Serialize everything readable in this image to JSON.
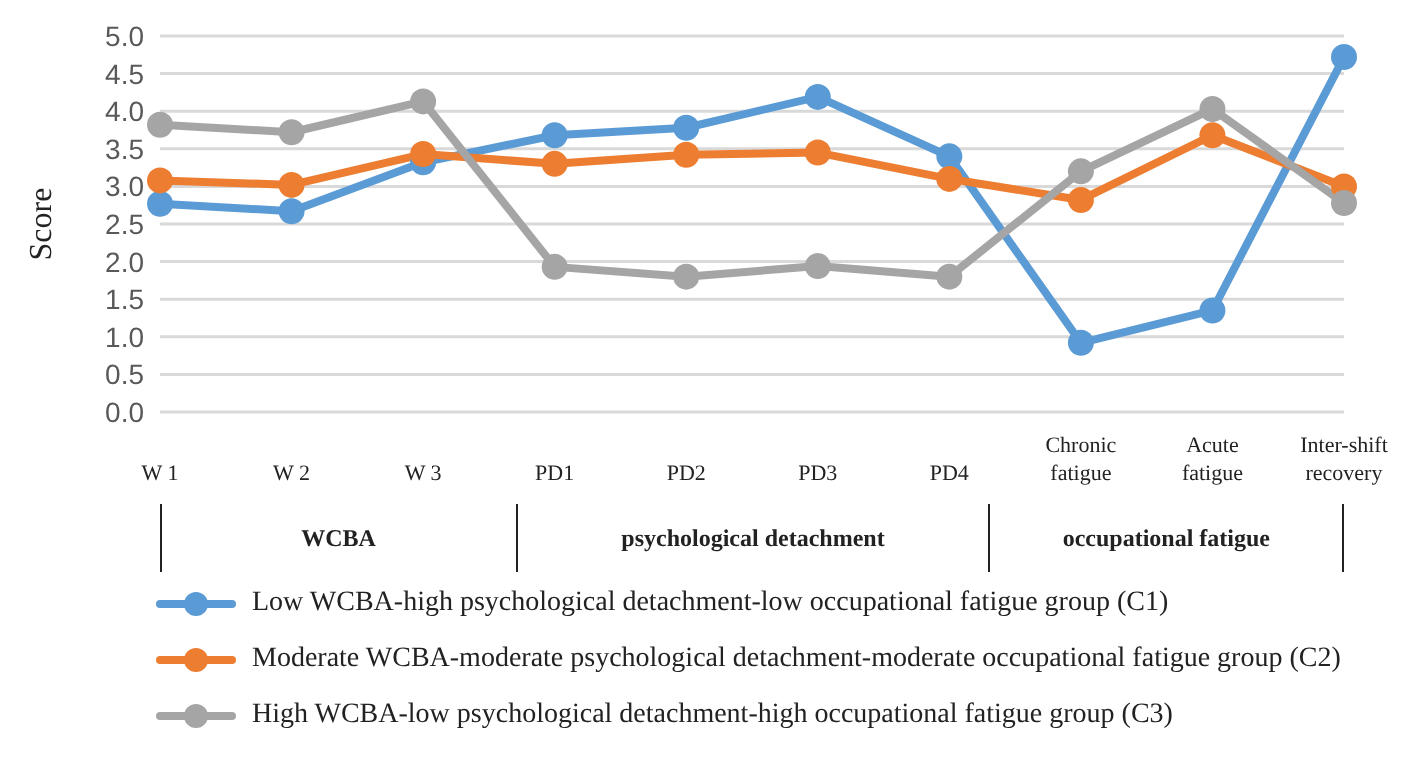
{
  "chart_data": {
    "type": "line",
    "ylabel": "Score",
    "categories": [
      "W 1",
      "W 2",
      "W 3",
      "PD1",
      "PD2",
      "PD3",
      "PD4",
      "Chronic fatigue",
      "Acute fatigue",
      "Inter-shift recovery"
    ],
    "series": [
      {
        "name": "Low WCBA-high psychological detachment-low occupational fatigue group (C1)",
        "color": "#5b9bd5",
        "values": [
          2.77,
          2.67,
          3.32,
          3.68,
          3.78,
          4.19,
          3.4,
          0.92,
          1.35,
          4.72
        ]
      },
      {
        "name": "Moderate WCBA-moderate psychological detachment-moderate occupational fatigue group (C2)",
        "color": "#ed7d31",
        "values": [
          3.08,
          3.02,
          3.43,
          3.3,
          3.42,
          3.45,
          3.1,
          2.82,
          3.68,
          3.0
        ]
      },
      {
        "name": "High WCBA-low psychological detachment-high occupational fatigue group (C3)",
        "color": "#a5a5a5",
        "values": [
          3.82,
          3.72,
          4.13,
          1.93,
          1.8,
          1.94,
          1.8,
          3.2,
          4.03,
          2.78
        ]
      }
    ],
    "ylim": [
      0,
      5
    ],
    "yticks": [
      {
        "value": 0,
        "label": "0.0"
      },
      {
        "value": 0.5,
        "label": "0.5"
      },
      {
        "value": 1,
        "label": "1.0"
      },
      {
        "value": 1.5,
        "label": "1.5"
      },
      {
        "value": 2,
        "label": "2.0"
      },
      {
        "value": 2.5,
        "label": "2.5"
      },
      {
        "value": 3,
        "label": "3.0"
      },
      {
        "value": 3.5,
        "label": "3.5"
      },
      {
        "value": 4,
        "label": "4.0"
      },
      {
        "value": 4.5,
        "label": "4.5"
      },
      {
        "value": 5,
        "label": "5.0"
      }
    ],
    "grid": "y",
    "legend": "bottom",
    "marker": "circle",
    "line_style": "solid",
    "annotations": [
      "WCBA",
      "psychological detachment",
      "occupational fatigue"
    ]
  }
}
